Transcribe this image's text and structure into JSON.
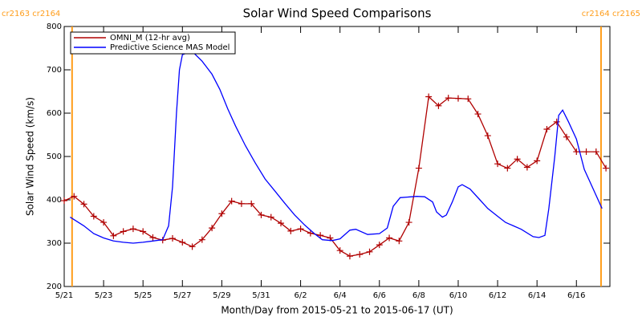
{
  "chart_data": {
    "type": "line",
    "title": "Solar Wind Speed Comparisons",
    "x_label": "Month/Day from 2015-05-21 to 2015-06-17 (UT)",
    "y_label": "Solar Wind Speed (km/s)",
    "xlim": [
      0,
      27.7
    ],
    "xticks": [
      {
        "value": 0,
        "label": "5/21"
      },
      {
        "value": 2,
        "label": "5/23"
      },
      {
        "value": 4,
        "label": "5/25"
      },
      {
        "value": 6,
        "label": "5/27"
      },
      {
        "value": 8,
        "label": "5/29"
      },
      {
        "value": 10,
        "label": "5/31"
      },
      {
        "value": 12,
        "label": "6/2"
      },
      {
        "value": 14,
        "label": "6/4"
      },
      {
        "value": 16,
        "label": "6/6"
      },
      {
        "value": 18,
        "label": "6/8"
      },
      {
        "value": 20,
        "label": "6/10"
      },
      {
        "value": 22,
        "label": "6/12"
      },
      {
        "value": 24,
        "label": "6/14"
      },
      {
        "value": 26,
        "label": "6/16"
      }
    ],
    "ylim": [
      200,
      800
    ],
    "yticks": [
      200,
      300,
      400,
      500,
      600,
      700,
      800
    ],
    "annotations": [
      {
        "text": "cr2163 cr2164",
        "x": 0.4,
        "color": "#ff9d1a"
      },
      {
        "text": "cr2164 cr2165",
        "x": 27.25,
        "color": "#ff9d1a"
      }
    ],
    "series": [
      {
        "name": "OMNI_M (12-hr avg)",
        "color": "#b00000",
        "marker": "+",
        "x": [
          0,
          0.5,
          1,
          1.5,
          2,
          2.5,
          3,
          3.5,
          4,
          4.5,
          5,
          5.5,
          6,
          6.5,
          7,
          7.5,
          8,
          8.5,
          9,
          9.5,
          10,
          10.5,
          11,
          11.5,
          12,
          12.5,
          13,
          13.5,
          14,
          14.5,
          15,
          15.5,
          16,
          16.5,
          17,
          17.5,
          18,
          18.5,
          19,
          19.5,
          20,
          20.5,
          21,
          21.5,
          22,
          22.5,
          23,
          23.5,
          24,
          24.5,
          25,
          25.5,
          26,
          26.5,
          27,
          27.5
        ],
        "values": [
          398,
          408,
          390,
          362,
          348,
          317,
          327,
          333,
          327,
          313,
          307,
          311,
          302,
          292,
          308,
          335,
          368,
          397,
          391,
          391,
          365,
          360,
          346,
          328,
          333,
          323,
          318,
          312,
          283,
          270,
          274,
          280,
          296,
          312,
          305,
          348,
          473,
          638,
          617,
          635,
          634,
          633,
          598,
          548,
          483,
          473,
          494,
          475,
          490,
          563,
          580,
          545,
          511,
          511,
          511,
          473
        ]
      },
      {
        "name": "Predictive Science MAS Model",
        "color": "#0000ff",
        "x": [
          0.3,
          1,
          1.5,
          2,
          2.5,
          3,
          3.5,
          4,
          4.5,
          5,
          5.3,
          5.5,
          5.7,
          5.85,
          6,
          6.3,
          6.6,
          7,
          7.5,
          7.9,
          8.3,
          8.7,
          9.2,
          9.7,
          10.2,
          10.7,
          11.2,
          11.7,
          12.2,
          12.7,
          13.1,
          13.6,
          14,
          14.5,
          14.8,
          15.4,
          16,
          16.4,
          16.7,
          17.05,
          17.9,
          18.3,
          18.7,
          18.9,
          19.2,
          19.4,
          19.7,
          20,
          20.2,
          20.6,
          21.1,
          21.5,
          22,
          22.4,
          22.8,
          23.2,
          23.8,
          24.1,
          24.4,
          24.6,
          24.9,
          25.1,
          25.3,
          25.6,
          26,
          26.4,
          26.7,
          27.1,
          27.3
        ],
        "values": [
          360,
          340,
          322,
          312,
          305,
          302,
          300,
          302,
          305,
          308,
          340,
          430,
          600,
          700,
          735,
          740,
          738,
          720,
          690,
          655,
          610,
          570,
          525,
          485,
          448,
          420,
          392,
          365,
          342,
          322,
          308,
          306,
          310,
          330,
          332,
          320,
          322,
          335,
          385,
          405,
          408,
          407,
          395,
          372,
          360,
          365,
          395,
          430,
          435,
          425,
          400,
          380,
          362,
          348,
          340,
          332,
          315,
          313,
          318,
          380,
          500,
          595,
          607,
          580,
          540,
          470,
          440,
          400,
          380
        ]
      }
    ],
    "legend": "upper-left"
  }
}
